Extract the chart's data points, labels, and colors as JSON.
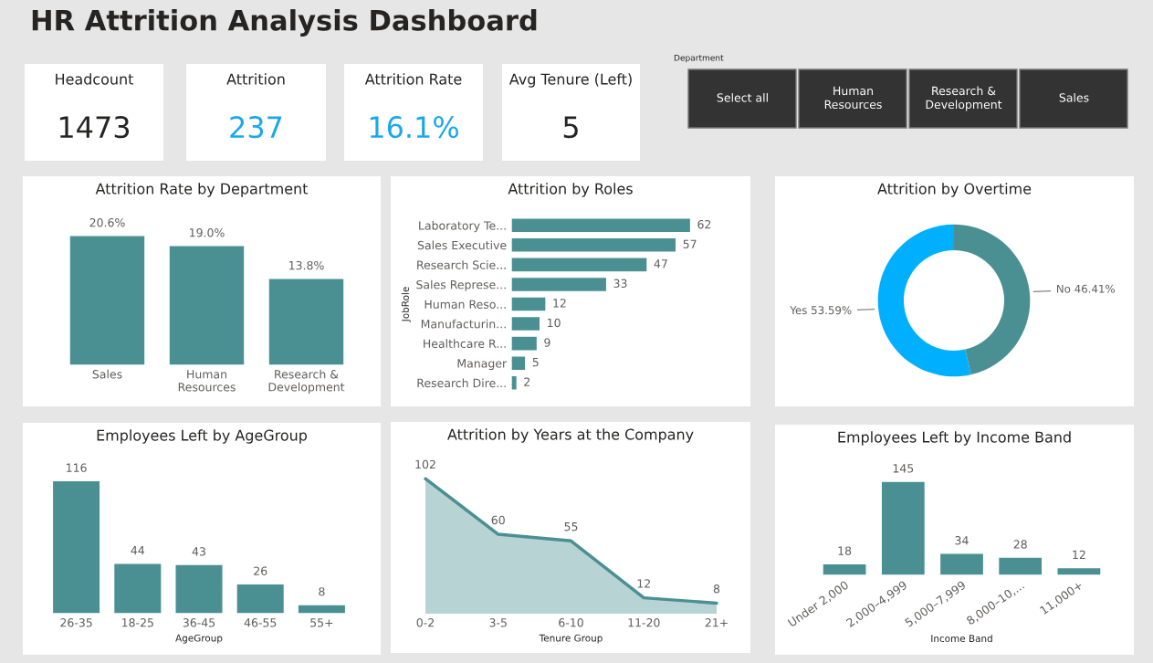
{
  "chart_data": [
    {
      "type": "other",
      "title": "HR Attrition Analysis Dashboard"
    },
    {
      "type": "other",
      "title": "Headcount",
      "annotations": [
        "1473"
      ]
    },
    {
      "type": "other",
      "title": "Attrition",
      "annotations": [
        "237"
      ],
      "colors": [
        "#1aa7ec"
      ]
    },
    {
      "type": "other",
      "title": "Attrition Rate",
      "annotations": [
        "16.1%"
      ],
      "colors": [
        "#1aa7ec"
      ]
    },
    {
      "type": "other",
      "title": "Avg Tenure (Left)",
      "annotations": [
        "5"
      ]
    },
    {
      "type": "other",
      "title": "Department",
      "annotations": [
        "Select all",
        "Human\nResources",
        "Research &\nDevelopment",
        "Sales"
      ]
    },
    {
      "type": "bar",
      "title": "Attrition Rate by Department",
      "categories": [
        "Sales",
        "Human\nResources",
        "Research &\nDevelopment"
      ],
      "values": [
        20.6,
        19.0,
        13.8
      ],
      "value_labels": [
        "20.6%",
        "19.0%",
        "13.8%"
      ],
      "color": "#4a9093",
      "tick_labels": "x"
    },
    {
      "type": "bar",
      "orientation": "horizontal",
      "title": "Attrition by Roles",
      "ylabel": "JobRole",
      "categories": [
        "Laboratory Te...",
        "Sales Executive",
        "Research Scie...",
        "Sales Represe...",
        "Human Reso...",
        "Manufacturin...",
        "Healthcare R...",
        "Manager",
        "Research Dire..."
      ],
      "values": [
        62,
        57,
        47,
        33,
        12,
        10,
        9,
        5,
        2
      ],
      "color": "#4a9093",
      "data_labels": true,
      "tick_labels": "y"
    },
    {
      "type": "donut",
      "title": "Attrition by Overtime",
      "categories": [
        "No",
        "Yes"
      ],
      "values": [
        46.41,
        53.59
      ],
      "value_labels": [
        "46.41%",
        "53.59%"
      ],
      "colors": [
        "#4a9093",
        "#00b0ff"
      ]
    },
    {
      "type": "bar",
      "title": "Employees Left by AgeGroup",
      "xlabel": "AgeGroup",
      "categories": [
        "26-35",
        "18-25",
        "36-45",
        "46-55",
        "55+"
      ],
      "values": [
        116,
        44,
        43,
        26,
        8
      ],
      "color": "#4a9093",
      "data_labels": true,
      "tick_labels": "x"
    },
    {
      "type": "area",
      "title": "Attrition by Years at the Company",
      "xlabel": "Tenure Group",
      "categories": [
        "0-2",
        "3-5",
        "6-10",
        "11-20",
        "21+"
      ],
      "values": [
        102,
        60,
        55,
        12,
        8
      ],
      "color": "#4a9093",
      "data_labels": true,
      "tick_labels": "x"
    },
    {
      "type": "bar",
      "title": "Employees Left by Income Band",
      "xlabel": "Income Band",
      "categories": [
        "Under 2,000",
        "2,000–4,999",
        "5,000–7,999",
        "8,000–10,...",
        "11,000+"
      ],
      "values": [
        18,
        145,
        34,
        28,
        12
      ],
      "color": "#4a9093",
      "data_labels": true,
      "tick_labels": "x"
    }
  ]
}
